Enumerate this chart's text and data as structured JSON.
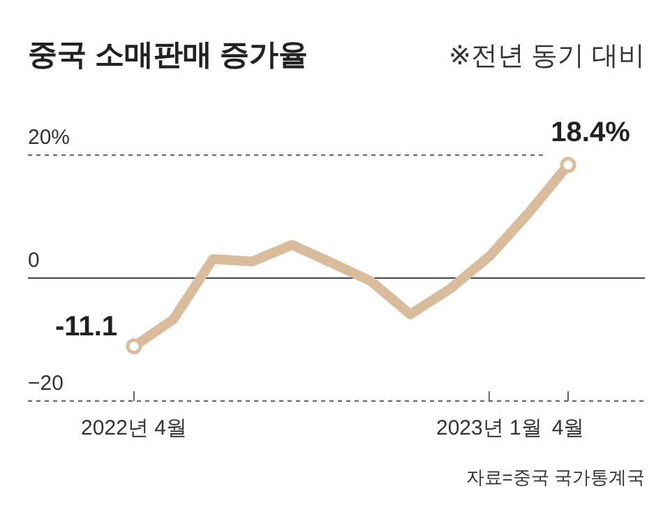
{
  "chart_data": {
    "type": "line",
    "title": "중국 소매판매 증가율",
    "subtitle": "※전년 동기 대비",
    "categories": [
      "2022년 4월",
      null,
      null,
      null,
      null,
      null,
      null,
      null,
      null,
      "2023년 1월",
      null,
      "4월"
    ],
    "series": [
      {
        "color": "#d9bc9c",
        "values": [
          -11.1,
          -6.7,
          3.1,
          2.7,
          5.4,
          2.5,
          -0.5,
          -5.9,
          -1.8,
          3.5,
          10.6,
          18.4
        ],
        "value_labels": [
          "-11.1",
          null,
          null,
          null,
          null,
          null,
          null,
          null,
          null,
          null,
          null,
          "18.4%"
        ]
      }
    ],
    "ylim": [
      -20,
      20
    ],
    "yticks": [
      {
        "value": 20,
        "label": "20%"
      },
      0,
      {
        "value": -20,
        "label": "−20"
      }
    ],
    "grid": "y",
    "annotations": [
      "자료=중국 국가통계국"
    ]
  }
}
